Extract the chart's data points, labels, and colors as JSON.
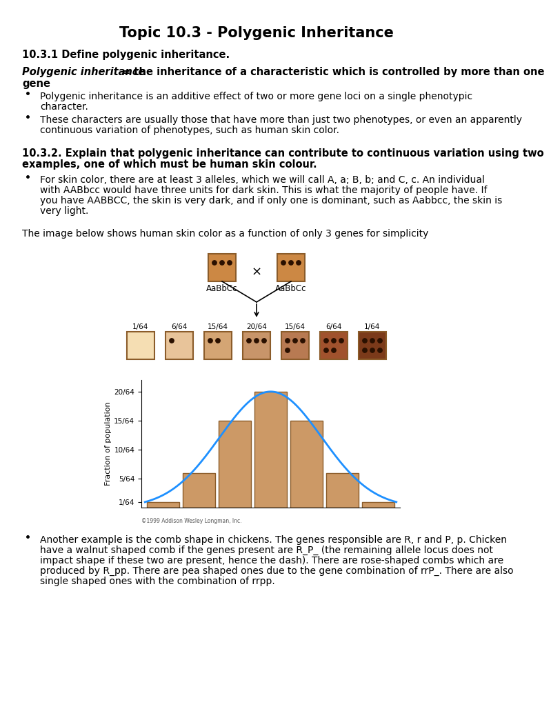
{
  "title": "Topic 10.3 - Polygenic Inheritance",
  "section1_header": "10.3.1 Define polygenic inheritance.",
  "section1_def_italic": "Polygenic inheritance",
  "section1_def_bold": " = the inheritance of a characteristic which is controlled by more than one",
  "section1_def_bold2": "gene",
  "bullet1_lines": [
    "Polygenic inheritance is an additive effect of two or more gene loci on a single phenotypic",
    "character."
  ],
  "bullet2_lines": [
    "These characters are usually those that have more than just two phenotypes, or even an apparently",
    "continuous variation of phenotypes, such as human skin color."
  ],
  "section2_line1": "10.3.2. Explain that polygenic inheritance can contribute to continuous variation using two",
  "section2_line2": "examples, one of which must be human skin colour.",
  "bullet3_lines": [
    "For skin color, there are at least 3 alleles, which we will call A, a; B, b; and C, c. An individual",
    "with AABbcc would have three units for dark skin. This is what the majority of people have. If",
    "you have AABBCC, the skin is very dark, and if only one is dominant, such as Aabbcc, the skin is",
    "very light."
  ],
  "caption": "The image below shows human skin color as a function of only 3 genes for simplicity",
  "parent_label": "AaBbCc",
  "fractions": [
    "1/64",
    "6/64",
    "15/64",
    "20/64",
    "15/64",
    "6/64",
    "1/64"
  ],
  "bar_heights": [
    1,
    6,
    15,
    20,
    15,
    6,
    1
  ],
  "bar_color": "#CC9966",
  "bar_edge_color": "#8B5C2A",
  "ytick_labels": [
    "1/64",
    "5/64",
    "10/64",
    "15/64",
    "20/64"
  ],
  "ytick_values": [
    1,
    5,
    10,
    15,
    20
  ],
  "ylabel": "Fraction of population",
  "copyright": "©1999 Addison Wesley Longman, Inc.",
  "bullet4_lines": [
    "Another example is the comb shape in chickens. The genes responsible are R, r and P, p. Chicken",
    "have a walnut shaped comb if the genes present are R_P_ (the remaining allele locus does not",
    "impact shape if these two are present, hence the dash). There are rose-shaped combs which are",
    "produced by R_pp. There are pea shaped ones due to the gene combination of rrP_. There are also",
    "single shaped ones with the combination of rrpp."
  ],
  "background_color": "#ffffff",
  "curve_color": "#1E90FF",
  "parent_skin": "#CC8844",
  "offspring_skin": [
    "#F5DEB3",
    "#E8C49A",
    "#D4A574",
    "#C8956A",
    "#B87A52",
    "#A0522D",
    "#7B3A1A"
  ],
  "dot_color_filled": "#2A1000",
  "dot_color_open_edge": "#8B5C2A",
  "box_border": "#8B5C2A"
}
